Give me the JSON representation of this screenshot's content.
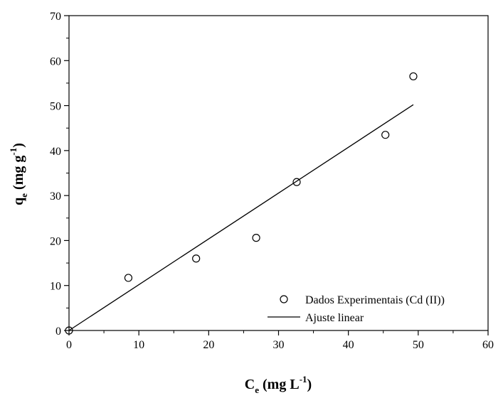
{
  "chart_data": {
    "type": "scatter",
    "xlabel": {
      "main": "C",
      "sub": "e",
      "rest": " (mg L",
      "sup": "-1",
      "end": ")"
    },
    "ylabel": {
      "main": "q",
      "sub": "e",
      "rest": " (mg g",
      "sup": "-1",
      "end": ")"
    },
    "xlim": [
      0,
      60
    ],
    "ylim": [
      0,
      70
    ],
    "xticks": [
      "0",
      "10",
      "20",
      "30",
      "40",
      "50",
      "60"
    ],
    "yticks": [
      "0",
      "10",
      "20",
      "30",
      "40",
      "50",
      "60",
      "70"
    ],
    "grid": false,
    "legend_position": "bottom-right",
    "series": [
      {
        "name": "Dados Experimentais (Cd (II))",
        "kind": "markers",
        "marker": "open-circle",
        "x": [
          0,
          8.5,
          18.2,
          26.8,
          32.6,
          45.3,
          49.3
        ],
        "y": [
          0,
          11.7,
          16.0,
          20.6,
          33.0,
          43.5,
          56.5
        ]
      },
      {
        "name": "Ajuste linear",
        "kind": "line",
        "x": [
          0,
          49.3
        ],
        "y": [
          0,
          50.2
        ]
      }
    ]
  }
}
